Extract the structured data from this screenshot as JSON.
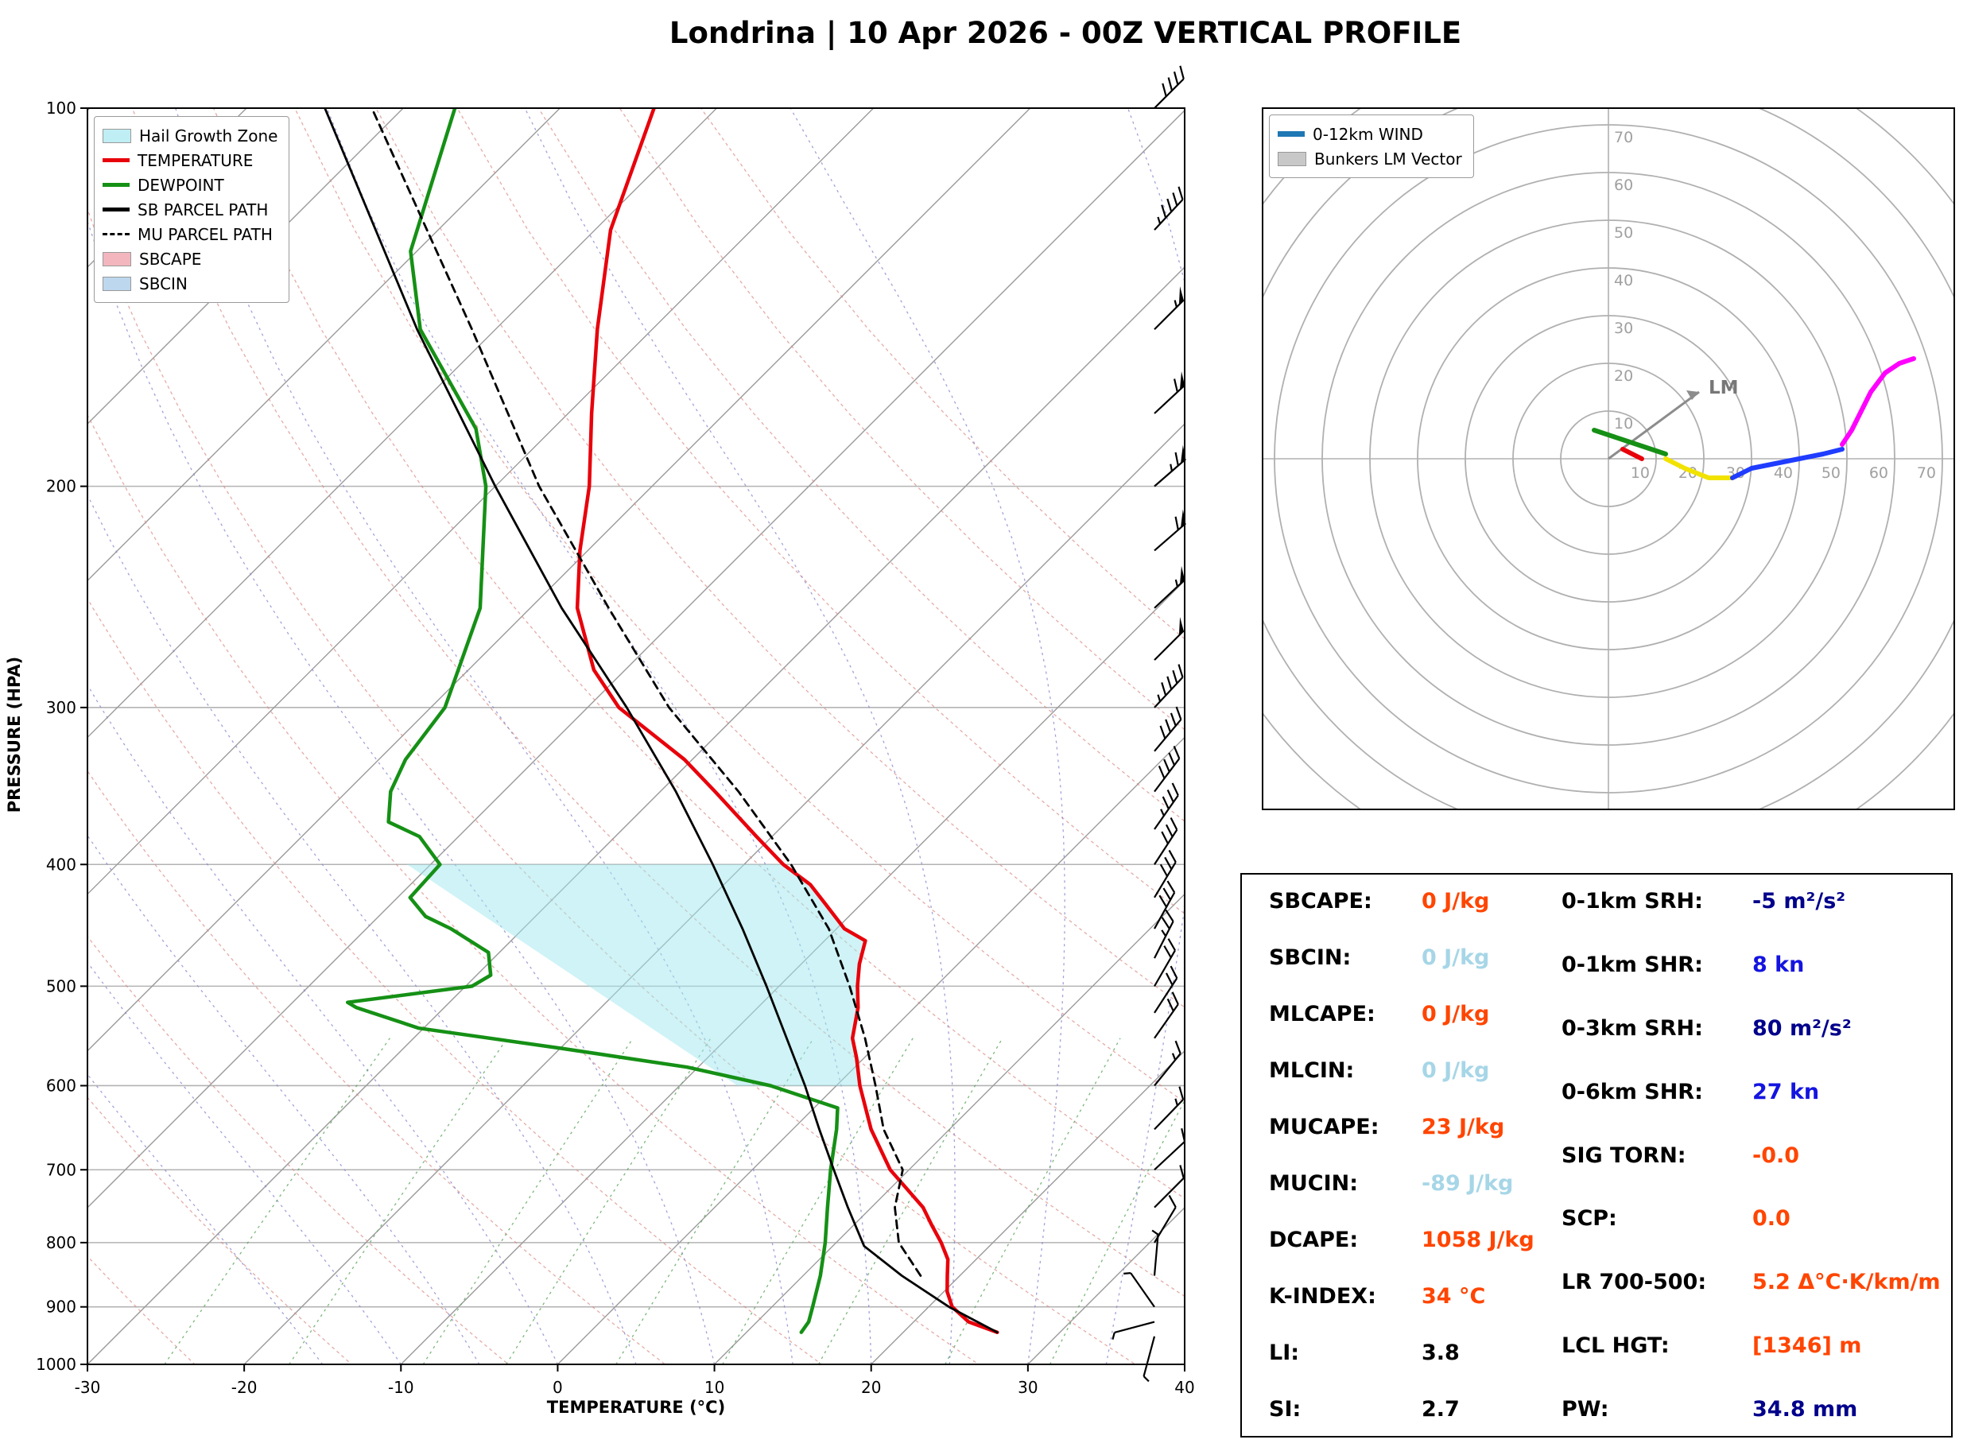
{
  "title": "Londrina | 10 Apr 2026 - 00Z VERTICAL PROFILE",
  "chart_data": [
    {
      "type": "line",
      "name": "skew_t_vertical_profile",
      "xlabel": "TEMPERATURE (°C)",
      "ylabel": "PRESSURE (HPA)",
      "xlim": [
        -30,
        40
      ],
      "x_ticks": [
        -30,
        -20,
        -10,
        0,
        10,
        20,
        30,
        40
      ],
      "pressure_ticks": [
        100,
        200,
        300,
        400,
        500,
        600,
        700,
        800,
        900,
        1000
      ],
      "pressure_range": [
        100,
        1000
      ],
      "legend": [
        {
          "label": "Hail Growth Zone",
          "type": "patch",
          "color": "#bfeef4"
        },
        {
          "label": "TEMPERATURE",
          "type": "line",
          "color": "#e8000b"
        },
        {
          "label": "DEWPOINT",
          "type": "line",
          "color": "#159015"
        },
        {
          "label": "SB PARCEL PATH",
          "type": "line",
          "color": "#000000"
        },
        {
          "label": "MU PARCEL PATH",
          "type": "dashed",
          "color": "#000000"
        },
        {
          "label": "SBCAPE",
          "type": "patch",
          "color": "#f4b6be"
        },
        {
          "label": "SBCIN",
          "type": "patch",
          "color": "#bdd7ee"
        }
      ],
      "series": [
        {
          "name": "TEMPERATURE",
          "color": "#e8000b",
          "width": 4.5,
          "dash": "",
          "points": [
            [
              943,
              26
            ],
            [
              925,
              23.5
            ],
            [
              900,
              21.5
            ],
            [
              875,
              20.2
            ],
            [
              850,
              19.2
            ],
            [
              825,
              18.2
            ],
            [
              800,
              16.7
            ],
            [
              775,
              15.0
            ],
            [
              750,
              13.3
            ],
            [
              700,
              8.8
            ],
            [
              650,
              5.0
            ],
            [
              600,
              1.5
            ],
            [
              570,
              -0.5
            ],
            [
              550,
              -2.0
            ],
            [
              520,
              -3.6
            ],
            [
              500,
              -5.0
            ],
            [
              480,
              -6.3
            ],
            [
              460,
              -7.4
            ],
            [
              450,
              -9.5
            ],
            [
              430,
              -12.3
            ],
            [
              415,
              -14.5
            ],
            [
              400,
              -17.5
            ],
            [
              380,
              -21.0
            ],
            [
              350,
              -26.5
            ],
            [
              330,
              -30.5
            ],
            [
              300,
              -38.0
            ],
            [
              280,
              -42.0
            ],
            [
              250,
              -47.0
            ],
            [
              225,
              -50.5
            ],
            [
              200,
              -54.0
            ],
            [
              175,
              -58.5
            ],
            [
              150,
              -63.5
            ],
            [
              125,
              -69.0
            ],
            [
              100,
              -74.0
            ]
          ]
        },
        {
          "name": "DEWPOINT",
          "color": "#159015",
          "width": 4.5,
          "dash": "",
          "points": [
            [
              943,
              13.5
            ],
            [
              925,
              13.3
            ],
            [
              900,
              12.6
            ],
            [
              850,
              11.1
            ],
            [
              800,
              9.3
            ],
            [
              750,
              7.2
            ],
            [
              700,
              5.0
            ],
            [
              650,
              2.8
            ],
            [
              625,
              1.5
            ],
            [
              600,
              -4.2
            ],
            [
              580,
              -10.7
            ],
            [
              560,
              -20.1
            ],
            [
              540,
              -30.3
            ],
            [
              520,
              -35.6
            ],
            [
              515,
              -36.5
            ],
            [
              500,
              -29.6
            ],
            [
              490,
              -29.1
            ],
            [
              470,
              -30.7
            ],
            [
              450,
              -34.6
            ],
            [
              440,
              -37.0
            ],
            [
              425,
              -39.2
            ],
            [
              400,
              -39.4
            ],
            [
              380,
              -42.5
            ],
            [
              370,
              -45.4
            ],
            [
              350,
              -47.2
            ],
            [
              330,
              -48.3
            ],
            [
              300,
              -49.1
            ],
            [
              250,
              -53.2
            ],
            [
              200,
              -60.6
            ],
            [
              180,
              -64.9
            ],
            [
              150,
              -74.8
            ],
            [
              130,
              -80.4
            ],
            [
              100,
              -86.7
            ]
          ]
        },
        {
          "name": "SB PARCEL PATH",
          "color": "#000000",
          "width": 2.8,
          "dash": "",
          "points": [
            [
              943,
              26
            ],
            [
              900,
              21.3
            ],
            [
              850,
              16.3
            ],
            [
              805,
              12.0
            ],
            [
              750,
              8.5
            ],
            [
              700,
              5.2
            ],
            [
              650,
              1.7
            ],
            [
              600,
              -2.0
            ],
            [
              550,
              -6.2
            ],
            [
              500,
              -10.8
            ],
            [
              450,
              -16.0
            ],
            [
              400,
              -22.0
            ],
            [
              350,
              -29.0
            ],
            [
              300,
              -37.5
            ],
            [
              250,
              -48.0
            ],
            [
              200,
              -60.0
            ],
            [
              150,
              -75.0
            ],
            [
              100,
              -95.0
            ]
          ]
        },
        {
          "name": "MU PARCEL PATH",
          "color": "#000000",
          "width": 2.8,
          "dash": "10 7",
          "points": [
            [
              850,
              17.5
            ],
            [
              800,
              14.0
            ],
            [
              750,
              11.5
            ],
            [
              700,
              9.6
            ],
            [
              650,
              5.8
            ],
            [
              600,
              2.5
            ],
            [
              550,
              -1.2
            ],
            [
              500,
              -5.5
            ],
            [
              450,
              -10.5
            ],
            [
              400,
              -17.0
            ],
            [
              350,
              -25.0
            ],
            [
              300,
              -34.8
            ],
            [
              250,
              -45.0
            ],
            [
              200,
              -57.2
            ],
            [
              150,
              -71.5
            ],
            [
              100,
              -92.0
            ]
          ]
        }
      ],
      "hail_growth_zone": {
        "label": "Hail Growth Zone",
        "color": "#9fe8ee",
        "pressure_top": 400,
        "pressure_bottom": 600,
        "polygon": [
          [
            400,
            -41.5
          ],
          [
            400,
            -17.5
          ],
          [
            415,
            -14.5
          ],
          [
            430,
            -12.3
          ],
          [
            450,
            -9.5
          ],
          [
            460,
            -7.4
          ],
          [
            480,
            -6.3
          ],
          [
            500,
            -5.0
          ],
          [
            520,
            -3.6
          ],
          [
            550,
            -2.0
          ],
          [
            570,
            -0.5
          ],
          [
            600,
            1.5
          ],
          [
            600,
            -6.3
          ]
        ]
      },
      "wind_barbs": [
        {
          "p": 100,
          "kn": 40,
          "dir": 270
        },
        {
          "p": 125,
          "kn": 45,
          "dir": 272
        },
        {
          "p": 150,
          "kn": 55,
          "dir": 270
        },
        {
          "p": 175,
          "kn": 60,
          "dir": 268
        },
        {
          "p": 200,
          "kn": 65,
          "dir": 266
        },
        {
          "p": 225,
          "kn": 60,
          "dir": 266
        },
        {
          "p": 250,
          "kn": 55,
          "dir": 268
        },
        {
          "p": 275,
          "kn": 50,
          "dir": 270
        },
        {
          "p": 300,
          "kn": 45,
          "dir": 272
        },
        {
          "p": 325,
          "kn": 40,
          "dir": 275
        },
        {
          "p": 350,
          "kn": 38,
          "dir": 278
        },
        {
          "p": 375,
          "kn": 35,
          "dir": 280
        },
        {
          "p": 400,
          "kn": 32,
          "dir": 282
        },
        {
          "p": 425,
          "kn": 30,
          "dir": 284
        },
        {
          "p": 450,
          "kn": 28,
          "dir": 286
        },
        {
          "p": 475,
          "kn": 25,
          "dir": 288
        },
        {
          "p": 500,
          "kn": 22,
          "dir": 285
        },
        {
          "p": 525,
          "kn": 20,
          "dir": 282
        },
        {
          "p": 550,
          "kn": 18,
          "dir": 280
        },
        {
          "p": 600,
          "kn": 16,
          "dir": 276
        },
        {
          "p": 650,
          "kn": 14,
          "dir": 271
        },
        {
          "p": 700,
          "kn": 12,
          "dir": 268
        },
        {
          "p": 750,
          "kn": 10,
          "dir": 270
        },
        {
          "p": 800,
          "kn": 8,
          "dir": 284
        },
        {
          "p": 850,
          "kn": 6,
          "dir": 310
        },
        {
          "p": 900,
          "kn": 5,
          "dir": 350
        },
        {
          "p": 925,
          "kn": 4,
          "dir": 60
        },
        {
          "p": 950,
          "kn": 3,
          "dir": 120
        }
      ]
    },
    {
      "type": "line",
      "name": "hodograph",
      "rings_kn": [
        10,
        20,
        30,
        40,
        50,
        60,
        70
      ],
      "ring_step_kn": 10,
      "legend": [
        {
          "label": "0-12km WIND",
          "type": "thickline",
          "color": "#1f77b4"
        },
        {
          "label": "Bunkers LM Vector",
          "type": "patch",
          "color": "#c8c8c8"
        }
      ],
      "segments": [
        {
          "color": "#159015",
          "points": [
            [
              -3,
              6
            ],
            [
              0,
              5
            ],
            [
              3,
              4
            ],
            [
              6,
              3
            ],
            [
              9,
              2
            ],
            [
              12,
              1
            ]
          ]
        },
        {
          "color": "#e8000b",
          "points": [
            [
              3,
              2
            ],
            [
              5,
              1
            ],
            [
              7,
              0
            ]
          ]
        },
        {
          "color": "#f2e200",
          "points": [
            [
              12,
              0
            ],
            [
              16,
              -2
            ],
            [
              21,
              -4
            ],
            [
              26,
              -4
            ]
          ]
        },
        {
          "color": "#1f3cff",
          "points": [
            [
              26,
              -4
            ],
            [
              30,
              -2
            ],
            [
              35,
              -1
            ],
            [
              40,
              0
            ],
            [
              45,
              1
            ],
            [
              49,
              2
            ]
          ]
        },
        {
          "color": "#ff00ff",
          "points": [
            [
              49,
              3
            ],
            [
              51,
              6
            ],
            [
              53,
              10
            ],
            [
              55,
              14
            ],
            [
              58,
              18
            ],
            [
              61,
              20
            ],
            [
              64,
              21
            ]
          ]
        }
      ],
      "lm_vector": {
        "u": 19,
        "v": 14,
        "label": "LM",
        "color": "#8c8c8c"
      }
    }
  ],
  "stats": {
    "left": [
      {
        "label": "SBCAPE:",
        "value": "0 J/kg",
        "color": "orangered"
      },
      {
        "label": "SBCIN:",
        "value": "0 J/kg",
        "color": "lightblue"
      },
      {
        "label": "MLCAPE:",
        "value": "0 J/kg",
        "color": "orangered"
      },
      {
        "label": "MLCIN:",
        "value": "0 J/kg",
        "color": "lightblue"
      },
      {
        "label": "MUCAPE:",
        "value": "23 J/kg",
        "color": "orangered"
      },
      {
        "label": "MUCIN:",
        "value": "-89 J/kg",
        "color": "lightblue"
      },
      {
        "label": "DCAPE:",
        "value": "1058 J/kg",
        "color": "orangered"
      },
      {
        "label": "K-INDEX:",
        "value": "34 °C",
        "color": "orangered"
      },
      {
        "label": "LI:",
        "value": "3.8",
        "color": "black"
      },
      {
        "label": "SI:",
        "value": "2.7",
        "color": "black"
      }
    ],
    "right": [
      {
        "label": "0-1km SRH:",
        "value": "-5 m²/s²",
        "color": "navy"
      },
      {
        "label": "0-1km SHR:",
        "value": "8 kn",
        "color": "blue"
      },
      {
        "label": "0-3km SRH:",
        "value": "80 m²/s²",
        "color": "navy"
      },
      {
        "label": "0-6km SHR:",
        "value": "27 kn",
        "color": "blue"
      },
      {
        "label": "SIG TORN:",
        "value": "-0.0",
        "color": "orangered"
      },
      {
        "label": "SCP:",
        "value": "0.0",
        "color": "orangered"
      },
      {
        "label": "LR 700-500:",
        "value": "5.2 Δ°C·K/km/m",
        "color": "orangered"
      },
      {
        "label": "LCL HGT:",
        "value": "[1346] m",
        "color": "orangered"
      },
      {
        "label": "PW:",
        "value": "34.8 mm",
        "color": "navy"
      }
    ]
  }
}
